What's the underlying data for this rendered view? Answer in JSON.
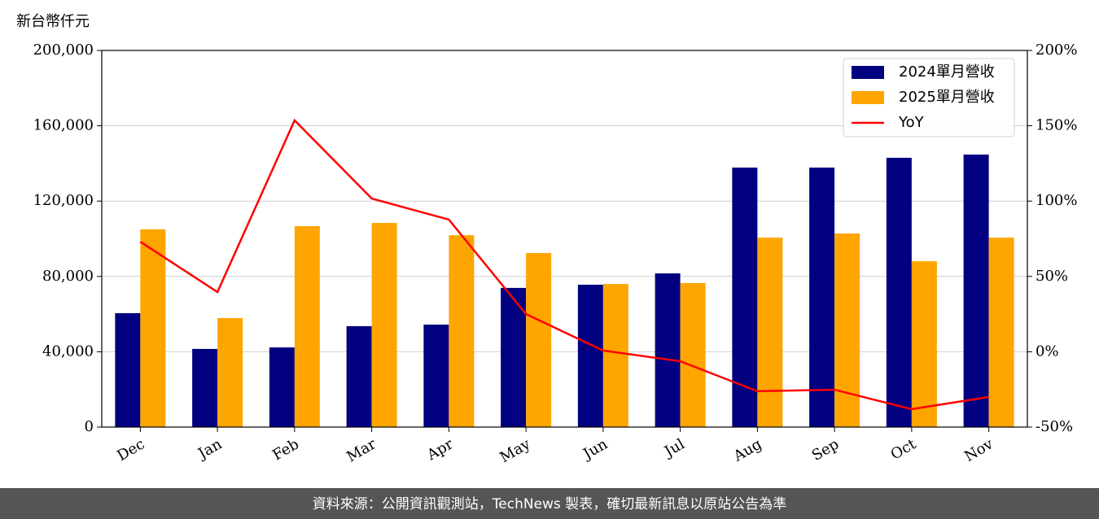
{
  "chart_data": {
    "type": "bar-line",
    "y_unit": "新台幣仟元",
    "source": "資料來源：公開資訊觀測站，TechNews 製表，確切最新訊息以原站公告為準",
    "categories": [
      "Dec",
      "Jan",
      "Feb",
      "Mar",
      "Apr",
      "May",
      "Jun",
      "Jul",
      "Aug",
      "Sep",
      "Oct",
      "Nov"
    ],
    "series": [
      {
        "name": "2024單月營收",
        "type": "bar",
        "color": "#000080",
        "values": [
          60500,
          41500,
          42300,
          53600,
          54400,
          73900,
          75600,
          81600,
          137800,
          137800,
          143000,
          144700
        ]
      },
      {
        "name": "2025單月營收",
        "type": "bar",
        "color": "#ffa500",
        "values": [
          105000,
          57900,
          106700,
          108400,
          101900,
          92400,
          76000,
          76500,
          100600,
          102800,
          88100,
          100600
        ]
      },
      {
        "name": "YoY",
        "type": "line",
        "axis": "y2",
        "color": "#ff0000",
        "values": [
          73.0,
          39.6,
          153.6,
          101.7,
          87.7,
          25.0,
          0.8,
          -6.3,
          -26.2,
          -25.2,
          -38.1,
          -30.0
        ]
      }
    ],
    "ylim": [
      0,
      200000
    ],
    "yticks": [
      0,
      {
        "value": 40000,
        "label": "40,000"
      },
      {
        "value": 80000,
        "label": "80,000"
      },
      {
        "value": 120000,
        "label": "120,000"
      },
      {
        "value": 160000,
        "label": "160,000"
      },
      {
        "value": 200000,
        "label": "200,000"
      }
    ],
    "y2lim": [
      -50,
      200
    ],
    "y2ticks": [
      {
        "value": -50,
        "label": "-50%"
      },
      {
        "value": 0,
        "label": "0%"
      },
      {
        "value": 50,
        "label": "50%"
      },
      {
        "value": 100,
        "label": "100%"
      },
      {
        "value": 150,
        "label": "150%"
      },
      {
        "value": 200,
        "label": "200%"
      }
    ],
    "grid": true,
    "legend": "upper right"
  }
}
